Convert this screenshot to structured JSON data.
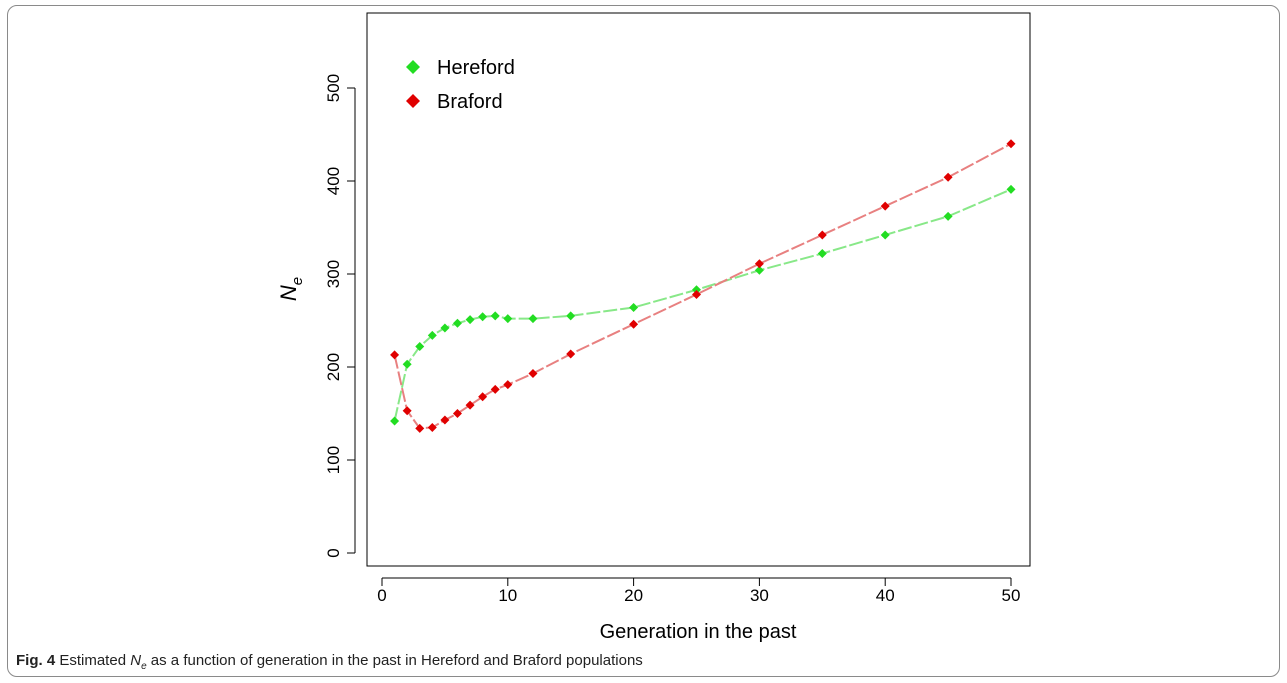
{
  "chart_data": {
    "type": "line",
    "xlabel": "Generation in the past",
    "ylabel": "N",
    "ylabel_subscript": "e",
    "xlim": [
      0,
      50
    ],
    "ylim": [
      0,
      550
    ],
    "xticks": [
      0,
      10,
      20,
      30,
      40,
      50
    ],
    "yticks": [
      0,
      100,
      200,
      300,
      400,
      500
    ],
    "grid": false,
    "legend_position": "top-left",
    "series": [
      {
        "name": "Hereford",
        "color": "#22dd22",
        "line_color": "#88e888",
        "x": [
          1,
          2,
          3,
          4,
          5,
          6,
          7,
          8,
          9,
          10,
          12,
          15,
          20,
          25,
          30,
          35,
          40,
          45,
          50
        ],
        "values": [
          142,
          203,
          222,
          234,
          242,
          247,
          251,
          254,
          255,
          252,
          252,
          255,
          264,
          283,
          304,
          322,
          342,
          362,
          391
        ]
      },
      {
        "name": "Braford",
        "color": "#e00000",
        "line_color": "#e88080",
        "x": [
          1,
          2,
          3,
          4,
          5,
          6,
          7,
          8,
          9,
          10,
          12,
          15,
          20,
          25,
          30,
          35,
          40,
          45,
          50
        ],
        "values": [
          213,
          153,
          134,
          135,
          143,
          150,
          159,
          168,
          176,
          181,
          193,
          214,
          246,
          278,
          311,
          342,
          373,
          404,
          440
        ]
      }
    ]
  },
  "caption": {
    "fig_label": "Fig. 4",
    "text_before": "Estimated",
    "ne_main": "N",
    "ne_sub": "e",
    "text_after": "as a function of generation in the past in Hereford and Braford populations"
  }
}
